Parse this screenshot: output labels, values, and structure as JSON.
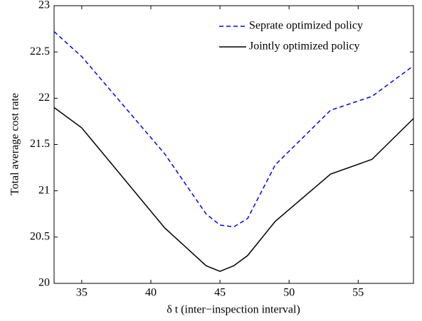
{
  "chart_data": {
    "type": "line",
    "x_label": "δ t (inter−inspection interval)",
    "y_label": "Total average cost rate",
    "x": [
      33,
      35,
      41,
      44,
      45,
      46,
      47,
      49,
      53,
      56,
      59
    ],
    "series": [
      {
        "name": "Seprate optimized policy",
        "color": "#0000ff",
        "linestyle": "dashed",
        "values": [
          22.72,
          22.45,
          21.4,
          20.75,
          20.63,
          20.61,
          20.7,
          21.28,
          21.87,
          22.02,
          22.35
        ]
      },
      {
        "name": "Jointly optimized policy",
        "color": "#000000",
        "linestyle": "solid",
        "values": [
          21.9,
          21.68,
          20.6,
          20.19,
          20.13,
          20.19,
          20.3,
          20.67,
          21.18,
          21.34,
          21.78
        ]
      }
    ],
    "xlim": [
      33,
      59
    ],
    "xticks": [
      35,
      40,
      45,
      50,
      55
    ],
    "ylim": [
      20,
      23
    ],
    "yticks": [
      20,
      20.5,
      21,
      21.5,
      22,
      22.5,
      23
    ],
    "legend": "upper right",
    "grid": false
  }
}
